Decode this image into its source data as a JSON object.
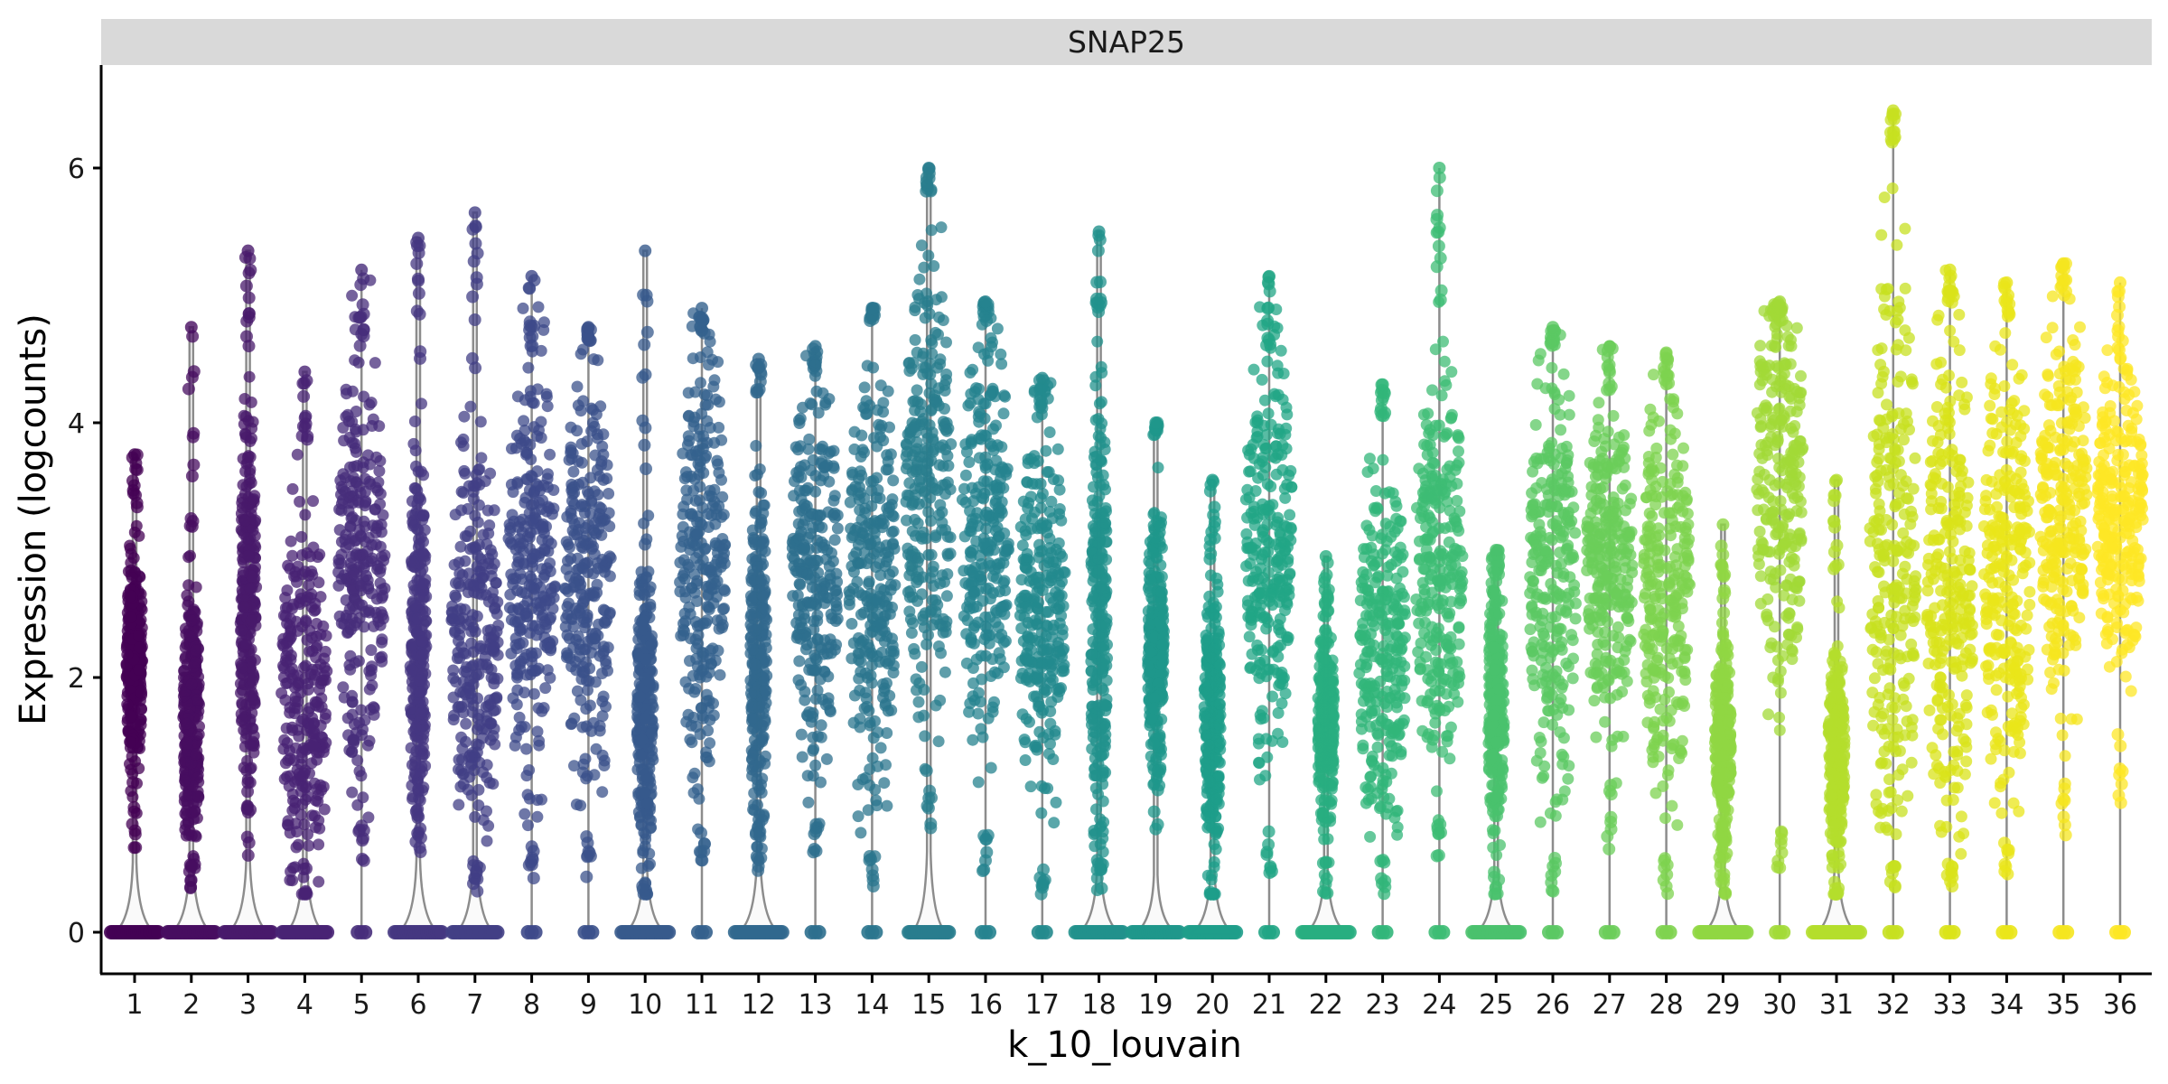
{
  "chart_data": {
    "type": "violin",
    "facet_title": "SNAP25",
    "xlabel": "k_10_louvain",
    "ylabel": "Expression (logcounts)",
    "ylim": [
      -0.3,
      6.8
    ],
    "yticks": [
      0,
      2,
      4,
      6
    ],
    "categories": [
      "1",
      "2",
      "3",
      "4",
      "5",
      "6",
      "7",
      "8",
      "9",
      "10",
      "11",
      "12",
      "13",
      "14",
      "15",
      "16",
      "17",
      "18",
      "19",
      "20",
      "21",
      "22",
      "23",
      "24",
      "25",
      "26",
      "27",
      "28",
      "29",
      "30",
      "31",
      "32",
      "33",
      "34",
      "35",
      "36"
    ],
    "colors": [
      "#440154",
      "#470D60",
      "#48196B",
      "#482374",
      "#472D7B",
      "#453781",
      "#423F85",
      "#3E4989",
      "#3B518B",
      "#375A8C",
      "#34618D",
      "#31688E",
      "#2E6F8E",
      "#2B768E",
      "#297D8E",
      "#26838F",
      "#238A8D",
      "#21918C",
      "#1F978B",
      "#1E9D89",
      "#21A585",
      "#28AE80",
      "#32B67A",
      "#3DBC74",
      "#4AC16D",
      "#5BC863",
      "#6BCD5A",
      "#7ED34F",
      "#90D743",
      "#A2DA37",
      "#B4DE2C",
      "#C7E020",
      "#DAE319",
      "#EAE51A",
      "#F5E61F",
      "#FDE725"
    ],
    "series": [
      {
        "cluster": "1",
        "median": 2.1,
        "q_low": 1.2,
        "q_high": 3.3,
        "max": 3.75,
        "zero_fraction": 0.5
      },
      {
        "cluster": "2",
        "median": 1.6,
        "q_low": 0.6,
        "q_high": 3.1,
        "max": 4.75,
        "zero_fraction": 0.5
      },
      {
        "cluster": "3",
        "median": 2.6,
        "q_low": 1.2,
        "q_high": 4.6,
        "max": 5.35,
        "zero_fraction": 0.45
      },
      {
        "cluster": "4",
        "median": 1.8,
        "q_low": 0.5,
        "q_high": 3.8,
        "max": 4.4,
        "zero_fraction": 0.4
      },
      {
        "cluster": "5",
        "median": 2.9,
        "q_low": 1.0,
        "q_high": 4.6,
        "max": 5.2,
        "zero_fraction": 0.03
      },
      {
        "cluster": "6",
        "median": 2.2,
        "q_low": 1.0,
        "q_high": 4.4,
        "max": 5.45,
        "zero_fraction": 0.45
      },
      {
        "cluster": "7",
        "median": 2.3,
        "q_low": 0.6,
        "q_high": 4.3,
        "max": 5.65,
        "zero_fraction": 0.4
      },
      {
        "cluster": "8",
        "median": 2.9,
        "q_low": 0.7,
        "q_high": 4.6,
        "max": 5.15,
        "zero_fraction": 0.03
      },
      {
        "cluster": "9",
        "median": 2.8,
        "q_low": 0.8,
        "q_high": 4.6,
        "max": 4.75,
        "zero_fraction": 0.02
      },
      {
        "cluster": "10",
        "median": 1.7,
        "q_low": 0.4,
        "q_high": 3.0,
        "max": 5.35,
        "zero_fraction": 0.55
      },
      {
        "cluster": "11",
        "median": 3.0,
        "q_low": 0.8,
        "q_high": 4.7,
        "max": 4.9,
        "zero_fraction": 0.02
      },
      {
        "cluster": "12",
        "median": 2.1,
        "q_low": 0.8,
        "q_high": 4.2,
        "max": 4.5,
        "zero_fraction": 0.45
      },
      {
        "cluster": "13",
        "median": 2.9,
        "q_low": 0.9,
        "q_high": 4.4,
        "max": 4.6,
        "zero_fraction": 0.02
      },
      {
        "cluster": "14",
        "median": 2.7,
        "q_low": 0.6,
        "q_high": 4.8,
        "max": 4.9,
        "zero_fraction": 0.1
      },
      {
        "cluster": "15",
        "median": 3.5,
        "q_low": 1.6,
        "q_high": 5.8,
        "max": 6.0,
        "zero_fraction": 0.3
      },
      {
        "cluster": "16",
        "median": 3.2,
        "q_low": 0.8,
        "q_high": 4.8,
        "max": 4.95,
        "zero_fraction": 0.02
      },
      {
        "cluster": "17",
        "median": 2.6,
        "q_low": 0.5,
        "q_high": 4.1,
        "max": 4.35,
        "zero_fraction": 0.03
      },
      {
        "cluster": "18",
        "median": 2.4,
        "q_low": 0.6,
        "q_high": 4.8,
        "max": 5.5,
        "zero_fraction": 0.55
      },
      {
        "cluster": "19",
        "median": 2.3,
        "q_low": 1.5,
        "q_high": 3.9,
        "max": 4.0,
        "zero_fraction": 0.75
      },
      {
        "cluster": "20",
        "median": 1.7,
        "q_low": 0.4,
        "q_high": 2.9,
        "max": 3.55,
        "zero_fraction": 0.6
      },
      {
        "cluster": "21",
        "median": 3.1,
        "q_low": 0.8,
        "q_high": 4.6,
        "max": 5.15,
        "zero_fraction": 0.02
      },
      {
        "cluster": "22",
        "median": 1.6,
        "q_low": 0.6,
        "q_high": 2.5,
        "max": 2.95,
        "zero_fraction": 0.65
      },
      {
        "cluster": "23",
        "median": 2.2,
        "q_low": 0.6,
        "q_high": 4.0,
        "max": 4.3,
        "zero_fraction": 0.05
      },
      {
        "cluster": "24",
        "median": 2.9,
        "q_low": 1.0,
        "q_high": 4.9,
        "max": 6.0,
        "zero_fraction": 0.05
      },
      {
        "cluster": "25",
        "median": 1.8,
        "q_low": 0.5,
        "q_high": 2.8,
        "max": 3.0,
        "zero_fraction": 0.6
      },
      {
        "cluster": "26",
        "median": 2.8,
        "q_low": 0.6,
        "q_high": 4.6,
        "max": 4.75,
        "zero_fraction": 0.05
      },
      {
        "cluster": "27",
        "median": 2.9,
        "q_low": 1.2,
        "q_high": 4.2,
        "max": 4.6,
        "zero_fraction": 0.02
      },
      {
        "cluster": "28",
        "median": 2.7,
        "q_low": 0.6,
        "q_high": 4.3,
        "max": 4.55,
        "zero_fraction": 0.05
      },
      {
        "cluster": "29",
        "median": 1.5,
        "q_low": 0.5,
        "q_high": 2.5,
        "max": 3.2,
        "zero_fraction": 0.75
      },
      {
        "cluster": "30",
        "median": 3.6,
        "q_low": 1.0,
        "q_high": 4.8,
        "max": 4.95,
        "zero_fraction": 0.02
      },
      {
        "cluster": "31",
        "median": 1.4,
        "q_low": 0.4,
        "q_high": 2.4,
        "max": 3.55,
        "zero_fraction": 0.55
      },
      {
        "cluster": "32",
        "median": 2.9,
        "q_low": 0.6,
        "q_high": 6.2,
        "max": 6.45,
        "zero_fraction": 0.05
      },
      {
        "cluster": "33",
        "median": 2.7,
        "q_low": 0.6,
        "q_high": 4.9,
        "max": 5.2,
        "zero_fraction": 0.03
      },
      {
        "cluster": "34",
        "median": 2.8,
        "q_low": 0.8,
        "q_high": 4.8,
        "max": 5.1,
        "zero_fraction": 0.03
      },
      {
        "cluster": "35",
        "median": 3.4,
        "q_low": 1.2,
        "q_high": 5.0,
        "max": 5.25,
        "zero_fraction": 0.03
      },
      {
        "cluster": "36",
        "median": 3.3,
        "q_low": 1.7,
        "q_high": 4.5,
        "max": 5.1,
        "zero_fraction": 0.0
      }
    ],
    "grid": false,
    "legend": "none"
  }
}
